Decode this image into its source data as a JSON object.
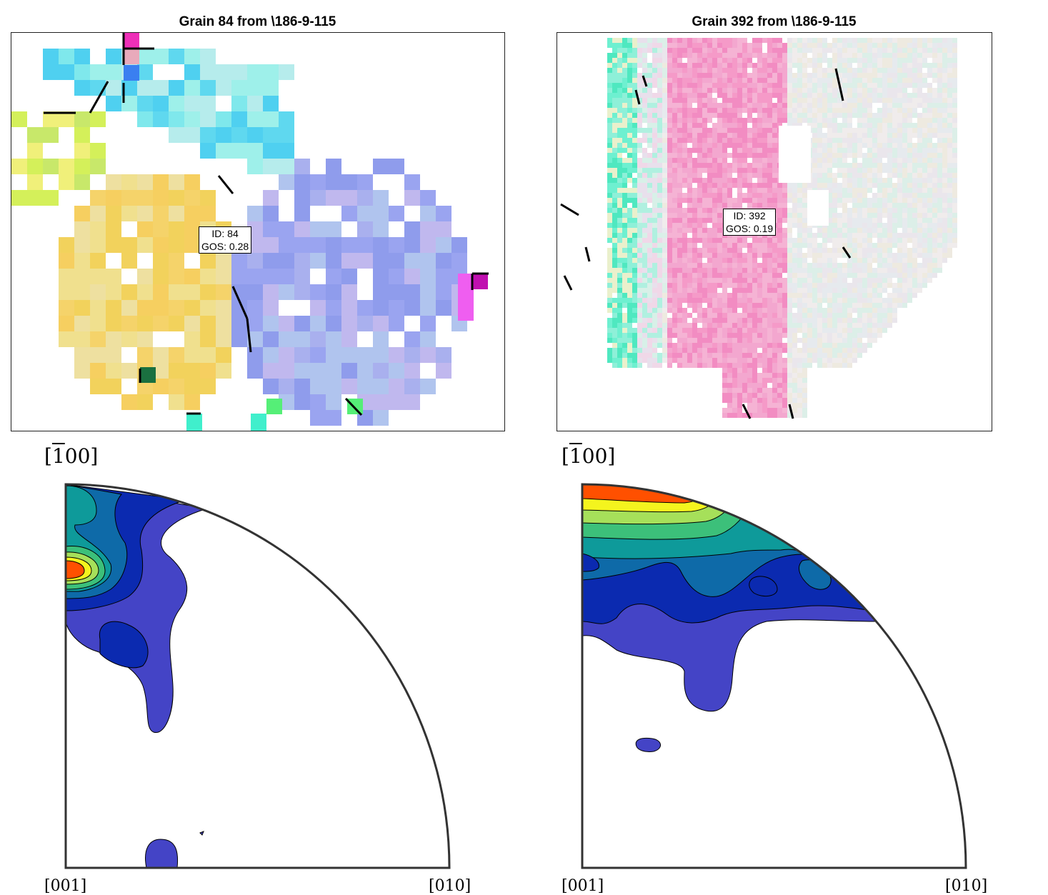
{
  "panels": [
    {
      "title": "Grain 84 from \\186-9-115",
      "grain_label": {
        "id": "ID: 84",
        "gos": "GOS: 0.28"
      },
      "pole_figure_label": "[100]",
      "pole_figure_label_parts": {
        "bracket_open": "[",
        "bar_digit": "1",
        "rest": "00]"
      },
      "axis_bottom_left": "[001]",
      "axis_bottom_right": "[010]"
    },
    {
      "title": "Grain 392 from \\186-9-115",
      "grain_label": {
        "id": "ID: 392",
        "gos": "GOS: 0.19"
      },
      "pole_figure_label": "[100]",
      "pole_figure_label_parts": {
        "bracket_open": "[",
        "bar_digit": "1",
        "rest": "00]"
      },
      "axis_bottom_left": "[001]",
      "axis_bottom_right": "[010]"
    }
  ],
  "colors": {
    "contour_levels": [
      "#4444c6",
      "#0b2ab0",
      "#0e6aa8",
      "#0e9a9a",
      "#3cc07a",
      "#a6e05a",
      "#f4f41e",
      "#ff5000"
    ]
  }
}
